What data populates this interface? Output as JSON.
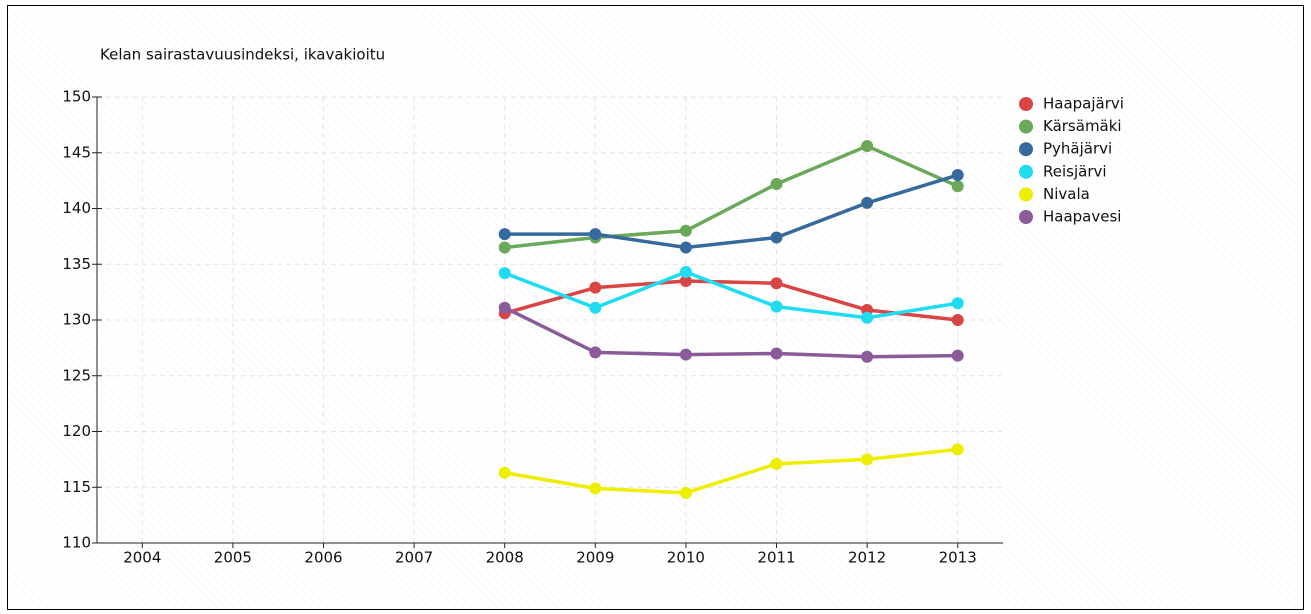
{
  "chart_data": {
    "type": "line",
    "title": "Kelan sairastavuusindeksi, ikavakioitu",
    "categories": [
      "2004",
      "2005",
      "2006",
      "2007",
      "2008",
      "2009",
      "2010",
      "2011",
      "2012",
      "2013"
    ],
    "series": [
      {
        "name": "Haapajärvi",
        "color": "#d94545",
        "values": [
          null,
          null,
          null,
          null,
          130.6,
          132.9,
          133.5,
          133.3,
          130.9,
          130.0
        ]
      },
      {
        "name": "Kärsämäki",
        "color": "#6aa85a",
        "values": [
          null,
          null,
          null,
          null,
          136.5,
          137.4,
          138.0,
          142.2,
          145.6,
          142.0
        ]
      },
      {
        "name": "Pyhäjärvi",
        "color": "#36699c",
        "values": [
          null,
          null,
          null,
          null,
          137.7,
          137.7,
          136.5,
          137.4,
          140.5,
          143.0
        ]
      },
      {
        "name": "Reisjärvi",
        "color": "#1fdcf0",
        "values": [
          null,
          null,
          null,
          null,
          134.2,
          131.1,
          134.3,
          131.2,
          130.2,
          131.5
        ]
      },
      {
        "name": "Nivala",
        "color": "#eeee00",
        "values": [
          null,
          null,
          null,
          null,
          116.3,
          114.9,
          114.5,
          117.1,
          117.5,
          118.4
        ]
      },
      {
        "name": "Haapavesi",
        "color": "#8a5a9a",
        "values": [
          null,
          null,
          null,
          null,
          131.1,
          127.1,
          126.9,
          127.0,
          126.7,
          126.8
        ]
      }
    ],
    "ylim": [
      110,
      150
    ],
    "yticks": [
      110,
      115,
      120,
      125,
      130,
      135,
      140,
      145,
      150
    ],
    "grid": true,
    "legend": "right"
  }
}
